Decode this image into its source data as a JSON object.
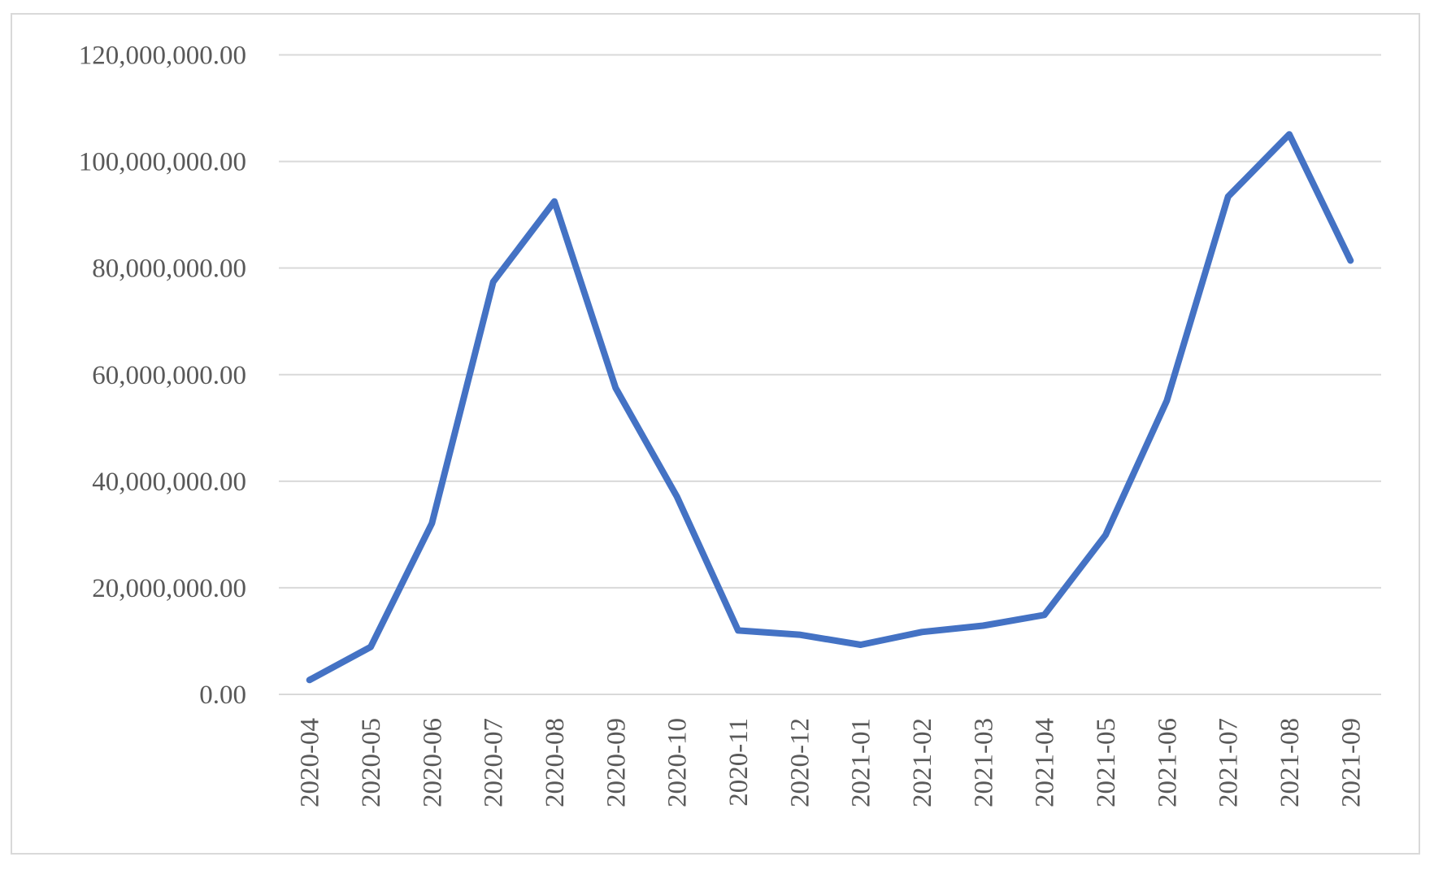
{
  "chart_data": {
    "type": "line",
    "categories": [
      "2020-04",
      "2020-05",
      "2020-06",
      "2020-07",
      "2020-08",
      "2020-09",
      "2020-10",
      "2020-11",
      "2020-12",
      "2021-01",
      "2021-02",
      "2021-03",
      "2021-04",
      "2021-05",
      "2021-06",
      "2021-07",
      "2021-08",
      "2021-09"
    ],
    "values": [
      2700000,
      8900000,
      32100000,
      77400000,
      92500000,
      57500000,
      37100000,
      12000000,
      11200000,
      9300000,
      11700000,
      12900000,
      14900000,
      29900000,
      55100000,
      93400000,
      105100000,
      81400000
    ],
    "color": "#4472c4",
    "ylim": [
      0,
      120000000
    ],
    "yticks": [
      {
        "value": 0,
        "label": "0.00"
      },
      {
        "value": 20000000,
        "label": "20,000,000.00"
      },
      {
        "value": 40000000,
        "label": "40,000,000.00"
      },
      {
        "value": 60000000,
        "label": "60,000,000.00"
      },
      {
        "value": 80000000,
        "label": "80,000,000.00"
      },
      {
        "value": 100000000,
        "label": "100,000,000.00"
      },
      {
        "value": 120000000,
        "label": "120,000,000.00"
      }
    ],
    "grid": true
  }
}
